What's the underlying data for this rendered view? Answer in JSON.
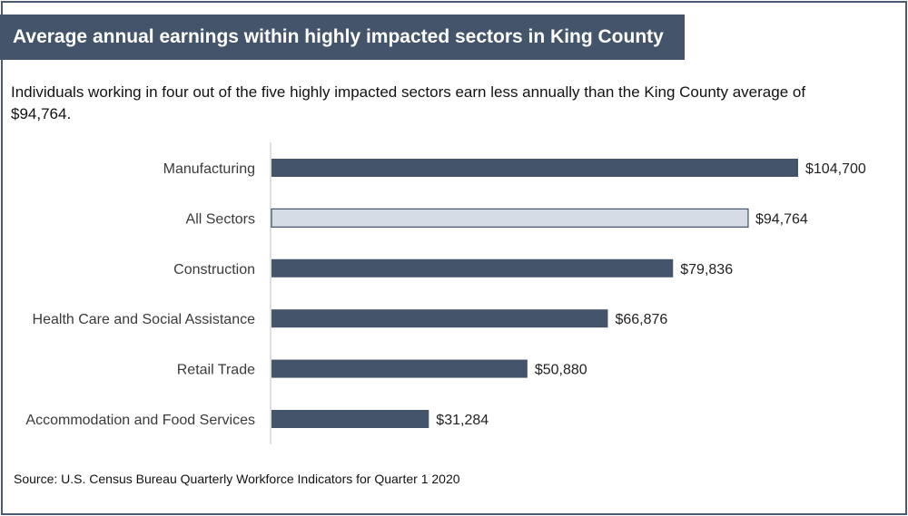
{
  "header": {
    "title": "Average annual earnings within highly impacted sectors in King County",
    "subtitle": "Individuals working in four out of the five highly impacted sectors earn less annually than the King County average of $94,764."
  },
  "footer": {
    "source": "Source: U.S. Census Bureau Quarterly Workforce Indicators for Quarter 1 2020"
  },
  "colors": {
    "primary_bar": "#44546a",
    "highlight_bar": "#d6dce5",
    "highlight_outline": "#44546a",
    "axis": "#bfbfbf"
  },
  "chart_data": {
    "type": "bar",
    "orientation": "horizontal",
    "categories": [
      "Manufacturing",
      "All Sectors",
      "Construction",
      "Health Care and Social Assistance",
      "Retail Trade",
      "Accommodation and Food Services"
    ],
    "values": [
      104700,
      94764,
      79836,
      66876,
      50880,
      31284
    ],
    "value_labels": [
      "$104,700",
      "$94,764",
      "$79,836",
      "$66,876",
      "$50,880",
      "$31,284"
    ],
    "highlighted_category": "All Sectors",
    "xlim": [
      0,
      104700
    ],
    "grid": false,
    "legend": "none"
  }
}
